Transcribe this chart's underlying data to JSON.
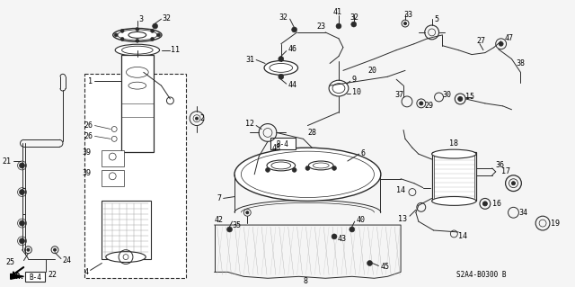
{
  "background_color": "#f5f5f5",
  "diagram_code": "S2A4-B0300 B",
  "line_color": "#2a2a2a",
  "text_color": "#000000",
  "font_size": 6.0,
  "fig_width": 6.4,
  "fig_height": 3.19,
  "dpi": 100
}
